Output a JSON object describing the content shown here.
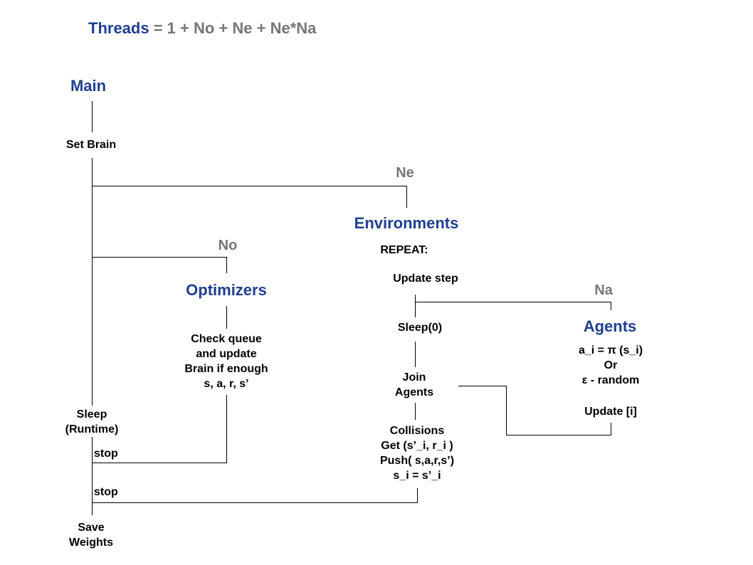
{
  "title": {
    "threads": "Threads",
    "formula": " = 1 + No + Ne + Ne*Na"
  },
  "main": {
    "heading": "Main",
    "set_brain": "Set Brain",
    "sleep": [
      "Sleep",
      "(Runtime)"
    ],
    "stop_optimizers": "stop",
    "stop_environments": "stop",
    "save": [
      "Save",
      "Weights"
    ]
  },
  "optimizers": {
    "count": "No",
    "heading": "Optimizers",
    "body": [
      "Check queue",
      "and update",
      "Brain if enough",
      "s, a, r, s’"
    ]
  },
  "environments": {
    "count": "Ne",
    "heading": "Environments",
    "repeat": "REPEAT:",
    "update_step": "Update step",
    "sleep": "Sleep(0)",
    "join": [
      "Join",
      "Agents"
    ],
    "collisions": [
      "Collisions",
      "Get (s’_i, r_i )",
      "Push( s,a,r,s’)",
      "s_i = s’_i"
    ]
  },
  "agents": {
    "count": "Na",
    "heading": "Agents",
    "policy": [
      "a_i = π (s_i)",
      "Or",
      "ε - random"
    ],
    "update": "Update [i]"
  },
  "colors": {
    "heading": "#1f3f8f",
    "count": "#767676",
    "line": "#000000"
  }
}
